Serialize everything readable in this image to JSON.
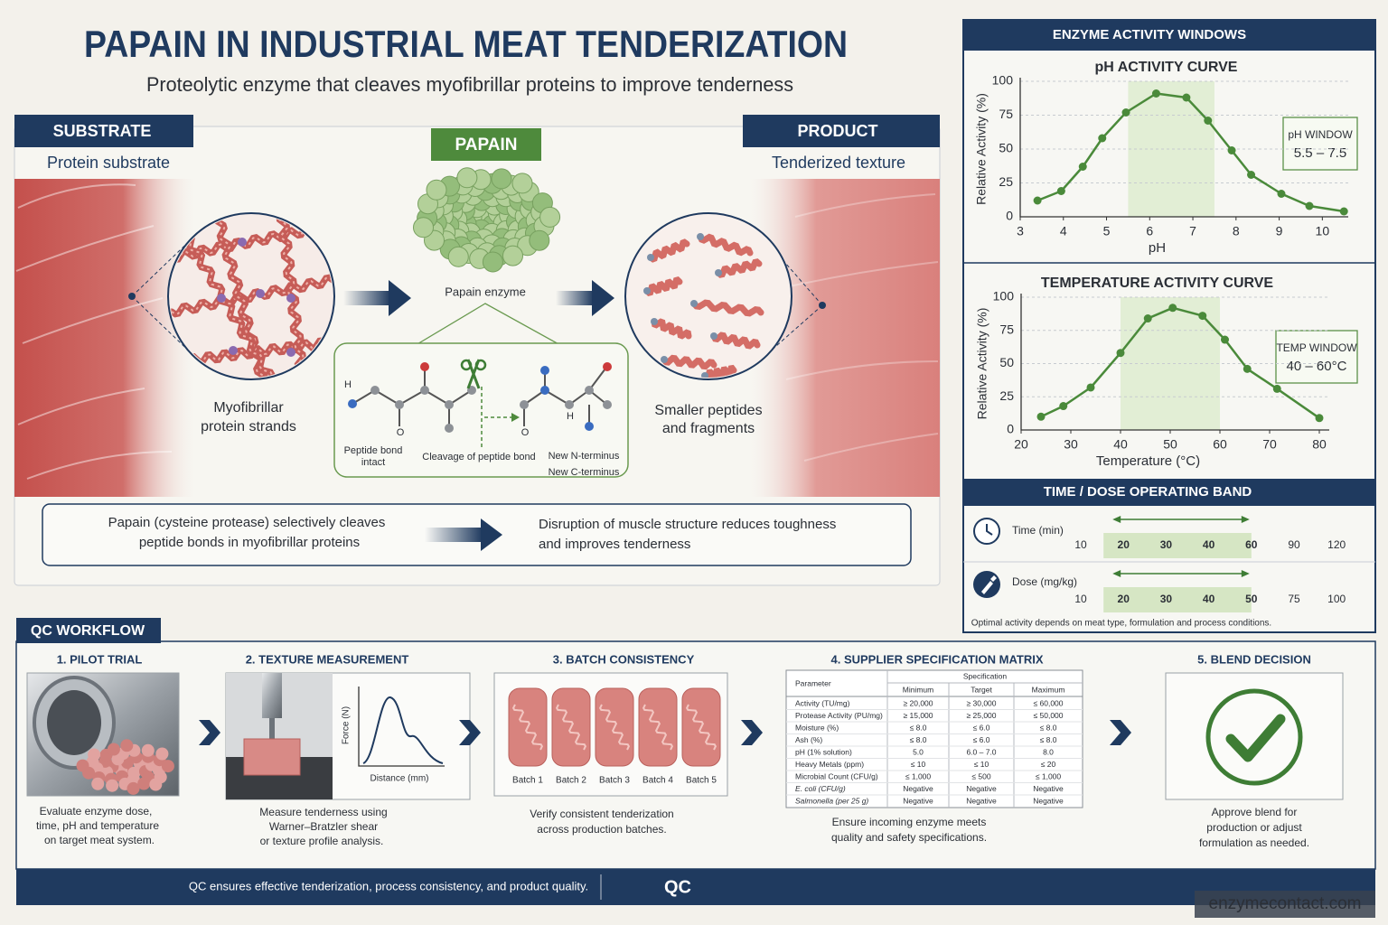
{
  "header": {
    "title": "PAPAIN IN INDUSTRIAL MEAT TENDERIZATION",
    "subtitle": "Proteolytic enzyme that cleaves myofibrillar proteins to improve tenderness"
  },
  "mechanism": {
    "substrate": {
      "heading": "SUBSTRATE",
      "label": "Protein substrate",
      "caption": [
        "Myofibrillar",
        "protein strands"
      ]
    },
    "enzyme": {
      "heading": "PAPAIN",
      "label": "Papain enzyme"
    },
    "product": {
      "heading": "PRODUCT",
      "label": "Tenderized texture",
      "caption": [
        "Smaller peptides",
        "and fragments"
      ]
    },
    "reaction": {
      "atoms": [
        "H",
        "O",
        "O",
        "H"
      ],
      "left": [
        "Peptide bond",
        "intact"
      ],
      "middle": "Cleavage of peptide bond",
      "right": [
        "New N-terminus",
        "New C-terminus"
      ]
    },
    "summary": {
      "left": [
        "Papain (cysteine protease) selectively cleaves",
        "peptide bonds in myofibrillar proteins"
      ],
      "right": [
        "Disruption of muscle structure reduces toughness",
        "and improves tenderness"
      ]
    }
  },
  "activity": {
    "title": "ENZYME ACTIVITY WINDOWS",
    "ph_chart": {
      "type": "line",
      "title": "pH ACTIVITY CURVE",
      "x_label": "pH",
      "y_label": "Relative Activity (%)",
      "x": [
        3.4,
        3.95,
        4.45,
        4.9,
        5.45,
        6.15,
        6.85,
        7.35,
        7.9,
        8.35,
        9.05,
        9.7,
        10.5
      ],
      "values": [
        12,
        19,
        37,
        58,
        77,
        91,
        88,
        71,
        49,
        31,
        17,
        8,
        4
      ],
      "color": "#4a8a3a",
      "xlim": [
        3,
        10.6
      ],
      "ylim": [
        0,
        100
      ],
      "xticks": [
        3,
        4,
        5,
        6,
        7,
        8,
        9,
        10
      ],
      "yticks": [
        0,
        25,
        50,
        75,
        100
      ],
      "grid": true,
      "window": {
        "range": [
          5.5,
          7.5
        ],
        "label": "pH WINDOW",
        "value_label": "5.5 – 7.5"
      }
    },
    "temp_chart": {
      "type": "line",
      "title": "TEMPERATURE ACTIVITY CURVE",
      "x_label": "Temperature (°C)",
      "y_label": "Relative Activity (%)",
      "x": [
        24,
        28.5,
        34,
        40,
        45.5,
        50.5,
        56.5,
        61,
        65.5,
        71.5,
        80
      ],
      "values": [
        10,
        18,
        32,
        58,
        84,
        92,
        86,
        68,
        46,
        31,
        9
      ],
      "color": "#4a8a3a",
      "xlim": [
        20,
        82
      ],
      "ylim": [
        0,
        100
      ],
      "xticks": [
        20,
        30,
        40,
        50,
        60,
        70,
        80
      ],
      "yticks": [
        0,
        25,
        50,
        75,
        100
      ],
      "grid": true,
      "window": {
        "range": [
          40,
          60
        ],
        "label": "TEMP WINDOW",
        "value_label": "40 – 60°C"
      }
    },
    "operating_band": {
      "title": "TIME / DOSE OPERATING BAND",
      "rows": [
        {
          "label": "Time (min)",
          "ticks": [
            10,
            20,
            30,
            40,
            60,
            90,
            120
          ],
          "band": [
            20,
            60
          ]
        },
        {
          "label": "Dose (mg/kg)",
          "ticks": [
            10,
            20,
            30,
            40,
            50,
            75,
            100
          ],
          "band": [
            20,
            50
          ]
        }
      ],
      "note": "Optimal activity depends on meat type, formulation and process conditions."
    }
  },
  "qc": {
    "title": "QC WORKFLOW",
    "steps": [
      {
        "title": "1. PILOT TRIAL",
        "caption": [
          "Evaluate enzyme dose,",
          "time, pH and temperature",
          "on target meat system."
        ]
      },
      {
        "title": "2. TEXTURE MEASUREMENT",
        "axis_y": "Force (N)",
        "axis_x": "Distance (mm)",
        "caption": [
          "Measure tenderness using",
          "Warner–Bratzler shear",
          "or texture profile analysis."
        ]
      },
      {
        "title": "3. BATCH CONSISTENCY",
        "batches": [
          "Batch 1",
          "Batch 2",
          "Batch 3",
          "Batch 4",
          "Batch 5"
        ],
        "caption": [
          "Verify consistent tenderization",
          "across production batches."
        ]
      },
      {
        "title": "4. SUPPLIER SPECIFICATION MATRIX",
        "caption": [
          "Ensure incoming enzyme meets",
          "quality and safety specifications."
        ]
      },
      {
        "title": "5. BLEND DECISION",
        "caption": [
          "Approve blend for",
          "production or adjust",
          "formulation as needed."
        ]
      }
    ],
    "spec_matrix": {
      "parameter": "Parameter",
      "specification": "Specification",
      "columns": [
        "Minimum",
        "Target",
        "Maximum"
      ],
      "rows": [
        [
          "Activity (TU/mg)",
          "≥ 20,000",
          "≥ 30,000",
          "≤ 60,000"
        ],
        [
          "Protease Activity (PU/mg)",
          "≥ 15,000",
          "≥ 25,000",
          "≤ 50,000"
        ],
        [
          "Moisture (%)",
          "≤ 8.0",
          "≤ 6.0",
          "≤ 8.0"
        ],
        [
          "Ash (%)",
          "≤ 8.0",
          "≤ 6.0",
          "≤ 8.0"
        ],
        [
          "pH (1% solution)",
          "5.0",
          "6.0 – 7.0",
          "8.0"
        ],
        [
          "Heavy Metals (ppm)",
          "≤ 10",
          "≤ 10",
          "≤ 20"
        ],
        [
          "Microbial Count (CFU/g)",
          "≤ 1,000",
          "≤ 500",
          "≤ 1,000"
        ],
        [
          "E. coli (CFU/g)",
          "Negative",
          "Negative",
          "Negative"
        ],
        [
          "Salmonella (per 25 g)",
          "Negative",
          "Negative",
          "Negative"
        ]
      ]
    }
  },
  "footer": {
    "statement": "QC ensures effective tenderization, process consistency, and product quality.",
    "badge": "QC",
    "watermark": "enzymecontact.com"
  }
}
